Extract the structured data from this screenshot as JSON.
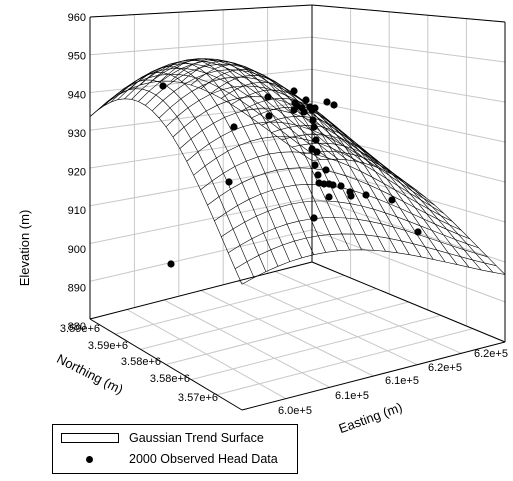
{
  "chart_data": {
    "type": "scatter",
    "subtype": "3d-surface-with-points",
    "z_axis": {
      "label": "Elevation (m)",
      "ticks": [
        "880",
        "890",
        "900",
        "910",
        "920",
        "930",
        "940",
        "950",
        "960"
      ],
      "range": [
        880,
        960
      ]
    },
    "x_axis": {
      "label": "Easting (m)",
      "ticks": [
        "6.0e+5",
        "6.1e+5",
        "6.1e+5",
        "6.2e+5",
        "6.2e+5"
      ]
    },
    "y_axis": {
      "label": "Northing (m)",
      "ticks": [
        "3.57e+6",
        "3.58e+6",
        "3.58e+6",
        "3.59e+6",
        "3.59e+6"
      ]
    },
    "series": [
      {
        "name": "Gaussian Trend Surface",
        "kind": "surface"
      },
      {
        "name": "2000 Observed Head Data",
        "kind": "points"
      }
    ],
    "grid": "on",
    "legend_position": "bottom-left"
  },
  "colors": {
    "surface_line": "#000000",
    "frame_grid": "#c8c8c8",
    "points": "#000000",
    "background": "#ffffff"
  }
}
